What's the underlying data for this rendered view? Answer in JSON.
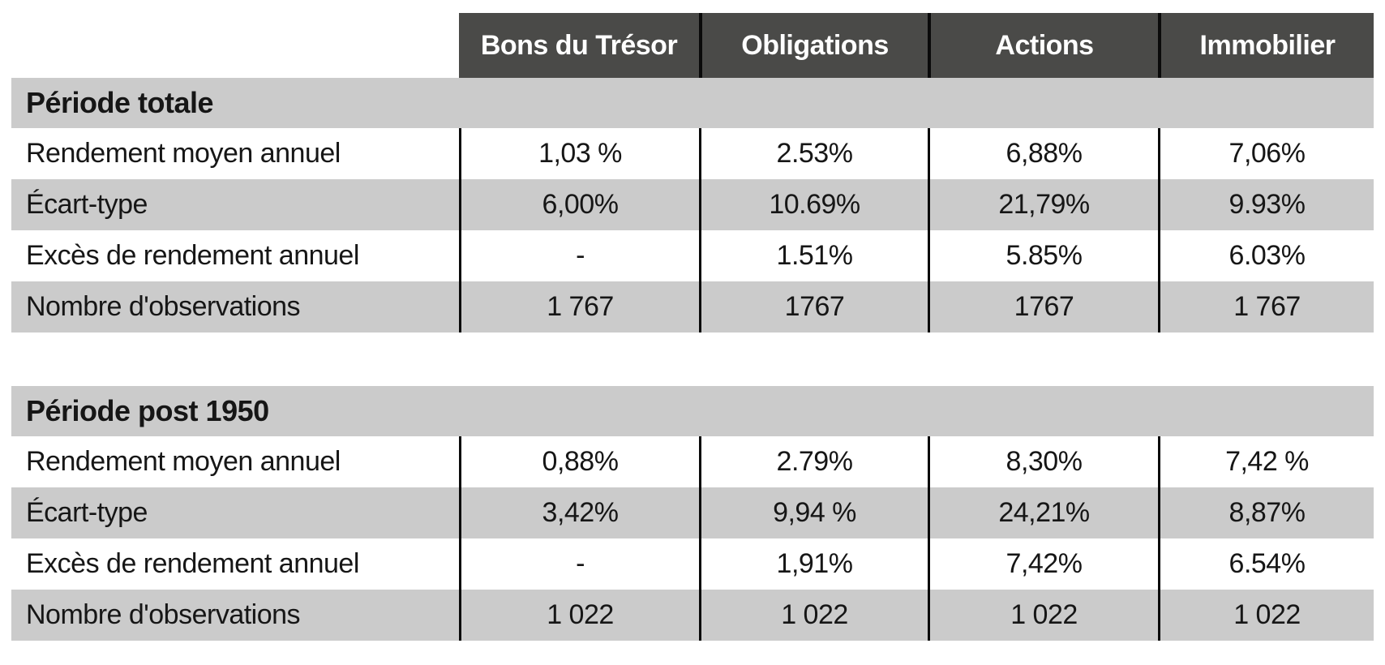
{
  "chart_data": {
    "type": "table",
    "columns": [
      "Bons du Trésor",
      "Obligations",
      "Actions",
      "Immobilier"
    ],
    "sections": [
      {
        "title": "Période totale",
        "rows": [
          {
            "label": "Rendement moyen annuel",
            "values": [
              "1,03 %",
              "2.53%",
              "6,88%",
              "7,06%"
            ]
          },
          {
            "label": "Écart-type",
            "values": [
              "6,00%",
              "10.69%",
              "21,79%",
              "9.93%"
            ]
          },
          {
            "label": "Excès de rendement annuel",
            "values": [
              "-",
              "1.51%",
              "5.85%",
              "6.03%"
            ]
          },
          {
            "label": "Nombre d'observations",
            "values": [
              "1 767",
              "1767",
              "1767",
              "1 767"
            ]
          }
        ]
      },
      {
        "title": "Période post 1950",
        "rows": [
          {
            "label": "Rendement moyen annuel",
            "values": [
              "0,88%",
              "2.79%",
              "8,30%",
              "7,42 %"
            ]
          },
          {
            "label": "Écart-type",
            "values": [
              "3,42%",
              "9,94 %",
              "24,21%",
              "8,87%"
            ]
          },
          {
            "label": "Excès de rendement annuel",
            "values": [
              "-",
              "1,91%",
              "7,42%",
              "6.54%"
            ]
          },
          {
            "label": "Nombre d'observations",
            "values": [
              "1 022",
              "1 022",
              "1 022",
              "1 022"
            ]
          }
        ]
      }
    ],
    "colors": {
      "header_bg": "#4a4a48",
      "header_text": "#ffffff",
      "stripe_bg": "#cbcbcb",
      "body_text": "#161616",
      "rule_line": "#0a0a0a"
    },
    "layout": {
      "grid": "off",
      "legend": "none",
      "stripes": "alternating gray/white rows, black vertical column rules"
    }
  }
}
